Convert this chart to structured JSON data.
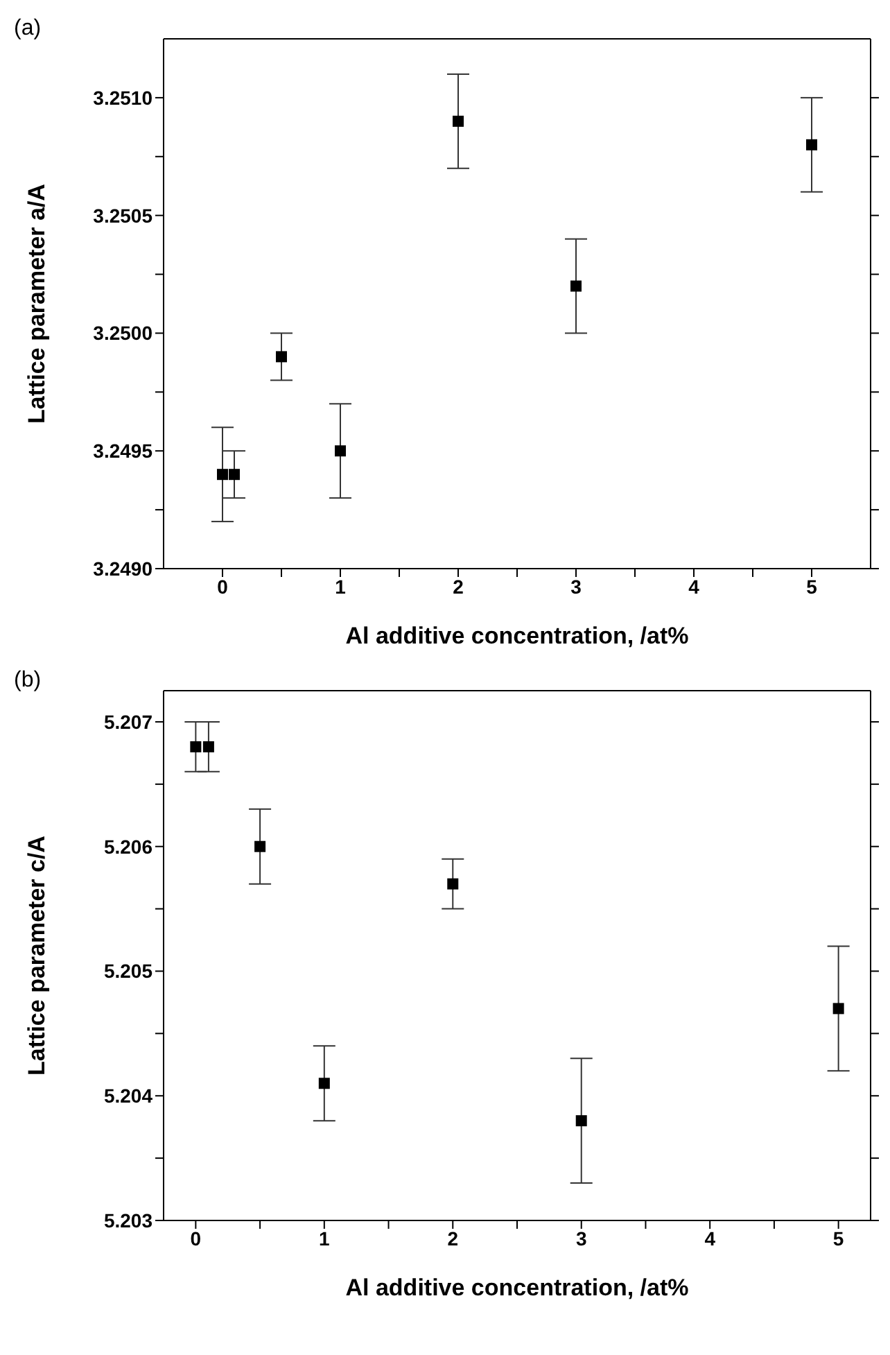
{
  "chart_data": [
    {
      "type": "scatter",
      "annotations": [
        "(a)"
      ],
      "xlabel": "Al additive concentration, /at%",
      "ylabel": "Lattice parameter a/A",
      "marker": "square",
      "xlim": [
        -0.5,
        5.5
      ],
      "xticks": [
        0,
        {
          "value": 0.5,
          "label": null
        },
        1,
        {
          "value": 1.5,
          "label": null
        },
        2,
        {
          "value": 2.5,
          "label": null
        },
        3,
        {
          "value": 3.5,
          "label": null
        },
        4,
        {
          "value": 4.5,
          "label": null
        },
        5
      ],
      "ylim": [
        3.249,
        3.25125
      ],
      "yticks": [
        {
          "value": 3.249,
          "label": "3.2490"
        },
        {
          "value": 3.24925,
          "label": null
        },
        {
          "value": 3.2495,
          "label": "3.2495"
        },
        {
          "value": 3.24975,
          "label": null
        },
        {
          "value": 3.25,
          "label": "3.2500"
        },
        {
          "value": 3.25025,
          "label": null
        },
        {
          "value": 3.2505,
          "label": "3.2505"
        },
        {
          "value": 3.25075,
          "label": null
        },
        {
          "value": 3.251,
          "label": "3.2510"
        }
      ],
      "series": [
        {
          "color": "#000000",
          "x": [
            0,
            0.1,
            0.5,
            1,
            2,
            3,
            5
          ],
          "values": [
            3.2494,
            3.2494,
            3.2499,
            3.2495,
            3.2509,
            3.2502,
            3.2508
          ],
          "errors": [
            [
              3.2492,
              3.2496
            ],
            [
              3.2493,
              3.2495
            ],
            [
              3.2498,
              3.25
            ],
            [
              3.2493,
              3.2497
            ],
            [
              3.2507,
              3.2511
            ],
            [
              3.25,
              3.2504
            ],
            [
              3.2506,
              3.251
            ]
          ]
        }
      ]
    },
    {
      "type": "scatter",
      "annotations": [
        "(b)"
      ],
      "xlabel": "Al additive concentration, /at%",
      "ylabel": "Lattice parameter c/A",
      "marker": "square",
      "xlim": [
        -0.25,
        5.25
      ],
      "xticks": [
        0,
        {
          "value": 0.5,
          "label": null
        },
        1,
        {
          "value": 1.5,
          "label": null
        },
        2,
        {
          "value": 2.5,
          "label": null
        },
        3,
        {
          "value": 3.5,
          "label": null
        },
        4,
        {
          "value": 4.5,
          "label": null
        },
        5
      ],
      "ylim": [
        5.203,
        5.20725
      ],
      "yticks": [
        5.203,
        {
          "value": 5.2035,
          "label": null
        },
        5.204,
        {
          "value": 5.2045,
          "label": null
        },
        5.205,
        {
          "value": 5.2055,
          "label": null
        },
        5.206,
        {
          "value": 5.2065,
          "label": null
        },
        5.207
      ],
      "series": [
        {
          "color": "#000000",
          "x": [
            0,
            0.1,
            0.5,
            1,
            2,
            3,
            5
          ],
          "values": [
            5.2068,
            5.2068,
            5.206,
            5.2041,
            5.2057,
            5.2038,
            5.2047
          ],
          "errors": [
            [
              5.2066,
              5.207
            ],
            [
              5.2066,
              5.207
            ],
            [
              5.2057,
              5.2063
            ],
            [
              5.2038,
              5.2044
            ],
            [
              5.2055,
              5.2059
            ],
            [
              5.2033,
              5.2043
            ],
            [
              5.2042,
              5.2052
            ]
          ]
        }
      ]
    }
  ]
}
